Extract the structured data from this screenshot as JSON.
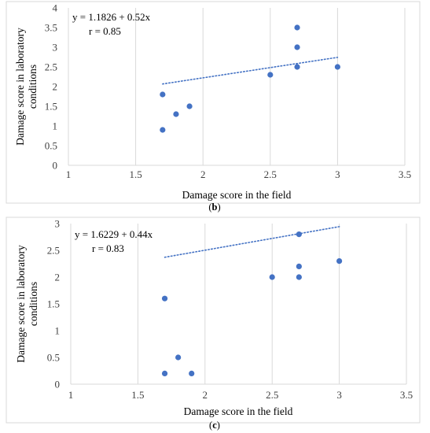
{
  "chart_data": [
    {
      "type": "scatter",
      "panel_label": "(b)",
      "xlabel": "Damage score in the field",
      "ylabel": "Damage score in laboratory conditions",
      "equation": "y = 1.1826 + 0.52x",
      "r_text": "r = 0.85",
      "xlim": [
        1,
        3.5
      ],
      "ylim": [
        0,
        4
      ],
      "xticks": [
        1,
        1.5,
        2,
        2.5,
        3,
        3.5
      ],
      "xtick_labels": [
        "1",
        "1.5",
        "2",
        "2.5",
        "3",
        "3.5"
      ],
      "yticks": [
        0,
        0.5,
        1,
        1.5,
        2,
        2.5,
        3,
        3.5,
        4
      ],
      "ytick_labels": [
        "0",
        "0.5",
        "1",
        "1.5",
        "2",
        "2.5",
        "3",
        "3.5",
        "4"
      ],
      "points": [
        {
          "x": 1.7,
          "y": 1.8
        },
        {
          "x": 1.7,
          "y": 0.9
        },
        {
          "x": 1.8,
          "y": 1.3
        },
        {
          "x": 1.9,
          "y": 1.5
        },
        {
          "x": 2.5,
          "y": 2.3
        },
        {
          "x": 2.7,
          "y": 3.5
        },
        {
          "x": 2.7,
          "y": 3.0
        },
        {
          "x": 2.7,
          "y": 2.5
        },
        {
          "x": 3.0,
          "y": 2.5
        }
      ],
      "trendline": {
        "intercept": 1.1826,
        "slope": 0.52,
        "x_range": [
          1.7,
          3.0
        ],
        "style": "dotted"
      },
      "grid": "vertical",
      "colors": {
        "points": "#4472c4",
        "trend": "#4472c4",
        "grid": "#d9d9d9",
        "frame": "#d9d9d9"
      }
    },
    {
      "type": "scatter",
      "panel_label": "(c)",
      "xlabel": "Damage score in the field",
      "ylabel": "Damage score in laboratory conditions",
      "equation": "y = 1.6229 + 0.44x",
      "r_text": "r = 0.83",
      "xlim": [
        1,
        3.5
      ],
      "ylim": [
        0,
        3
      ],
      "xticks": [
        1,
        1.5,
        2,
        2.5,
        3,
        3.5
      ],
      "xtick_labels": [
        "1",
        "1.5",
        "2",
        "2.5",
        "3",
        "3.5"
      ],
      "yticks": [
        0,
        0.5,
        1,
        1.5,
        2,
        2.5,
        3
      ],
      "ytick_labels": [
        "0",
        "0.5",
        "1",
        "1.5",
        "2",
        "2.5",
        "3"
      ],
      "points": [
        {
          "x": 1.7,
          "y": 1.6
        },
        {
          "x": 1.7,
          "y": 0.2
        },
        {
          "x": 1.8,
          "y": 0.5
        },
        {
          "x": 1.9,
          "y": 0.2
        },
        {
          "x": 2.5,
          "y": 2.0
        },
        {
          "x": 2.7,
          "y": 2.8
        },
        {
          "x": 2.7,
          "y": 2.2
        },
        {
          "x": 2.7,
          "y": 2.0
        },
        {
          "x": 3.0,
          "y": 2.3
        }
      ],
      "trendline": {
        "intercept": 1.6229,
        "slope": 0.44,
        "x_range": [
          1.7,
          3.0
        ],
        "style": "dotted"
      },
      "grid": "vertical",
      "colors": {
        "points": "#4472c4",
        "trend": "#4472c4",
        "grid": "#d9d9d9",
        "frame": "#d9d9d9"
      }
    }
  ]
}
